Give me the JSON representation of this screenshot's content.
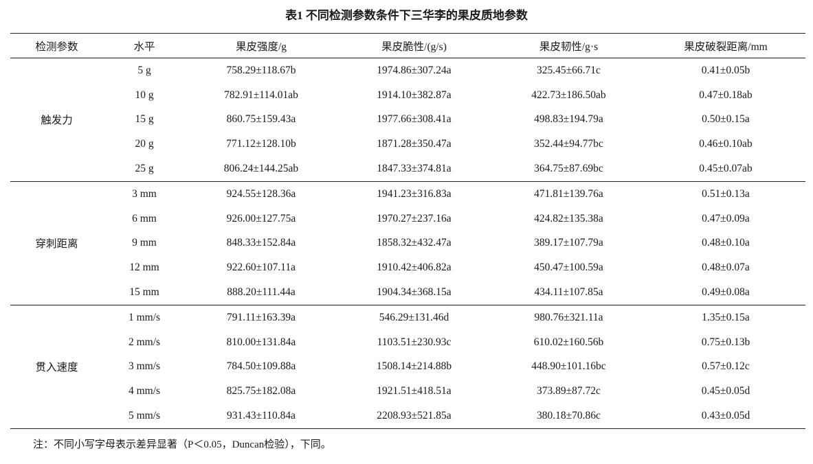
{
  "title": "表1  不同检测参数条件下三华李的果皮质地参数",
  "headers": [
    "检测参数",
    "水平",
    "果皮强度/g",
    "果皮脆性/(g/s)",
    "果皮韧性/g·s",
    "果皮破裂距离/mm"
  ],
  "groups": [
    {
      "name": "触发力",
      "rows": [
        [
          "5 g",
          "758.29±118.67b",
          "1974.86±307.24a",
          "325.45±66.71c",
          "0.41±0.05b"
        ],
        [
          "10 g",
          "782.91±114.01ab",
          "1914.10±382.87a",
          "422.73±186.50ab",
          "0.47±0.18ab"
        ],
        [
          "15 g",
          "860.75±159.43a",
          "1977.66±308.41a",
          "498.83±194.79a",
          "0.50±0.15a"
        ],
        [
          "20 g",
          "771.12±128.10b",
          "1871.28±350.47a",
          "352.44±94.77bc",
          "0.46±0.10ab"
        ],
        [
          "25 g",
          "806.24±144.25ab",
          "1847.33±374.81a",
          "364.75±87.69bc",
          "0.45±0.07ab"
        ]
      ]
    },
    {
      "name": "穿刺距离",
      "rows": [
        [
          "3 mm",
          "924.55±128.36a",
          "1941.23±316.83a",
          "471.81±139.76a",
          "0.51±0.13a"
        ],
        [
          "6 mm",
          "926.00±127.75a",
          "1970.27±237.16a",
          "424.82±135.38a",
          "0.47±0.09a"
        ],
        [
          "9 mm",
          "848.33±152.84a",
          "1858.32±432.47a",
          "389.17±107.79a",
          "0.48±0.10a"
        ],
        [
          "12 mm",
          "922.60±107.11a",
          "1910.42±406.82a",
          "450.47±100.59a",
          "0.48±0.07a"
        ],
        [
          "15 mm",
          "888.20±111.44a",
          "1904.34±368.15a",
          "434.11±107.85a",
          "0.49±0.08a"
        ]
      ]
    },
    {
      "name": "贯入速度",
      "rows": [
        [
          "1 mm/s",
          "791.11±163.39a",
          "546.29±131.46d",
          "980.76±321.11a",
          "1.35±0.15a"
        ],
        [
          "2 mm/s",
          "810.00±131.84a",
          "1103.51±230.93c",
          "610.02±160.56b",
          "0.75±0.13b"
        ],
        [
          "3 mm/s",
          "784.50±109.88a",
          "1508.14±214.88b",
          "448.90±101.16bc",
          "0.57±0.12c"
        ],
        [
          "4 mm/s",
          "825.75±182.08a",
          "1921.51±418.51a",
          "373.89±87.72c",
          "0.45±0.05d"
        ],
        [
          "5 mm/s",
          "931.43±110.84a",
          "2208.93±521.85a",
          "380.18±70.86c",
          "0.43±0.05d"
        ]
      ]
    }
  ],
  "note": "注：不同小写字母表示差异显著（P＜0.05，Duncan检验），下同。"
}
